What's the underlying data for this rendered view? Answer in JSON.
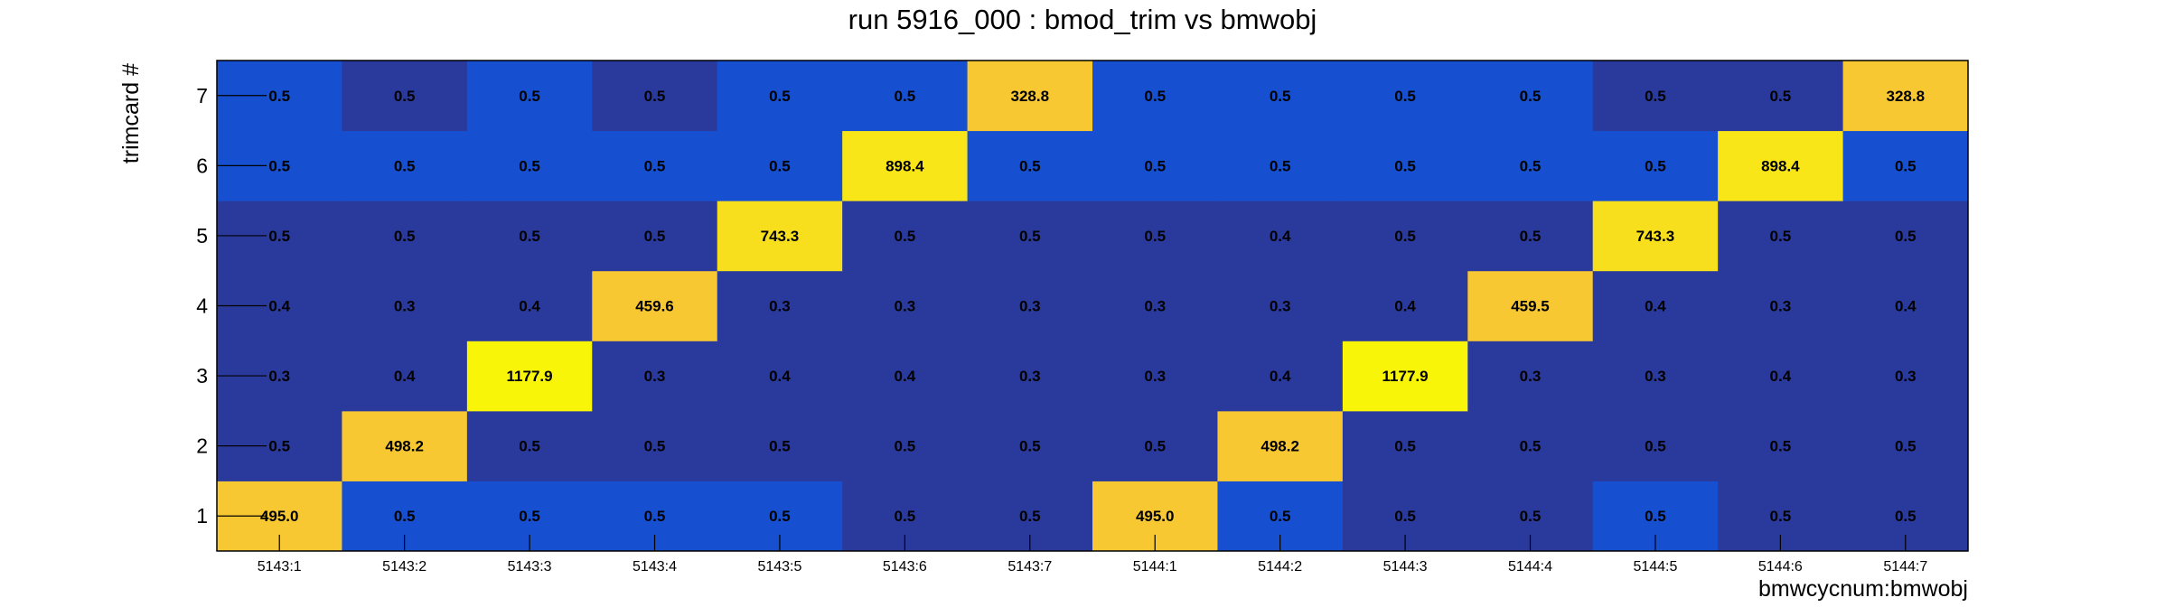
{
  "chart_data": {
    "type": "heatmap",
    "title": "run 5916_000 : bmod_trim vs bmwobj",
    "xlabel": "bmwcycnum:bmwobj",
    "ylabel": "trimcard #",
    "x_categories": [
      "5143:1",
      "5143:2",
      "5143:3",
      "5143:4",
      "5143:5",
      "5143:6",
      "5143:7",
      "5144:1",
      "5144:2",
      "5144:3",
      "5144:4",
      "5144:5",
      "5144:6",
      "5144:7"
    ],
    "y_categories": [
      "1",
      "2",
      "3",
      "4",
      "5",
      "6",
      "7"
    ],
    "values": [
      [
        495.0,
        0.5,
        0.5,
        0.5,
        0.5,
        0.5,
        0.5,
        495.0,
        0.5,
        0.5,
        0.5,
        0.5,
        0.5,
        0.5
      ],
      [
        0.5,
        498.2,
        0.5,
        0.5,
        0.5,
        0.5,
        0.5,
        0.5,
        498.2,
        0.5,
        0.5,
        0.5,
        0.5,
        0.5
      ],
      [
        0.3,
        0.4,
        1177.9,
        0.3,
        0.4,
        0.4,
        0.3,
        0.3,
        0.4,
        1177.9,
        0.3,
        0.3,
        0.4,
        0.3
      ],
      [
        0.4,
        0.3,
        0.4,
        459.6,
        0.3,
        0.3,
        0.3,
        0.3,
        0.3,
        0.4,
        459.5,
        0.4,
        0.3,
        0.4
      ],
      [
        0.5,
        0.5,
        0.5,
        0.5,
        743.3,
        0.5,
        0.5,
        0.5,
        0.4,
        0.5,
        0.5,
        743.3,
        0.5,
        0.5
      ],
      [
        0.5,
        0.5,
        0.5,
        0.5,
        0.5,
        898.4,
        0.5,
        0.5,
        0.5,
        0.5,
        0.5,
        0.5,
        898.4,
        0.5
      ],
      [
        0.5,
        0.5,
        0.5,
        0.5,
        0.5,
        0.5,
        328.8,
        0.5,
        0.5,
        0.5,
        0.5,
        0.5,
        0.5,
        328.8
      ]
    ],
    "colors": {
      "low_dark": "#2a3a9c",
      "low_bright": "#1650d0",
      "mid_gold": "#f7c832",
      "high_yellow": "#f9f509",
      "frame": "#000000"
    }
  }
}
